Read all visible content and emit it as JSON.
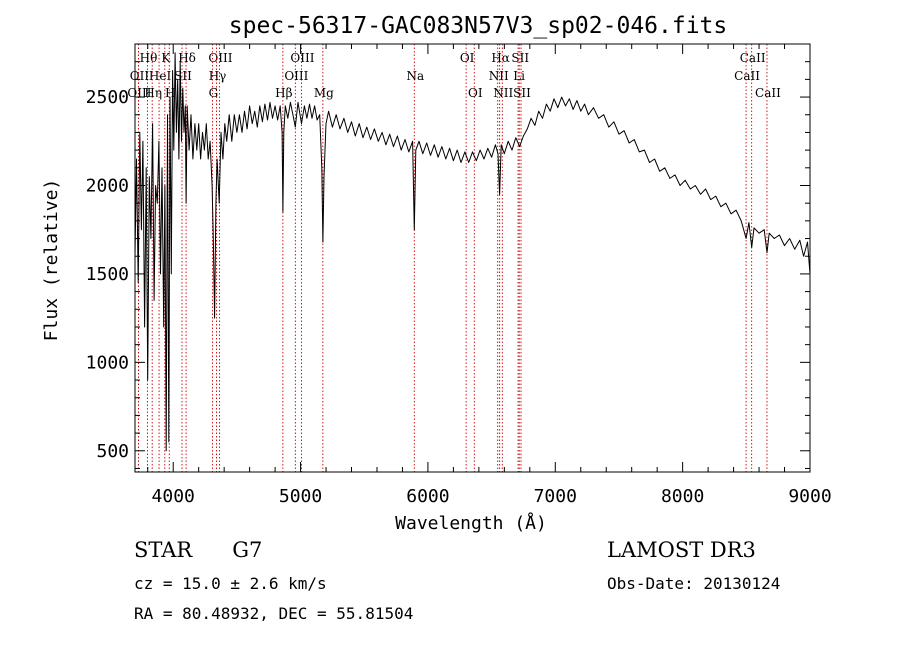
{
  "chart_data": {
    "type": "line",
    "title": "spec-56317-GAC083N57V3_sp02-046.fits",
    "xlabel": "Wavelength (Å)",
    "ylabel": "Flux (relative)",
    "xlim": [
      3700,
      9000
    ],
    "ylim": [
      380,
      2800
    ],
    "xticks": [
      4000,
      5000,
      6000,
      7000,
      8000,
      9000
    ],
    "yticks": [
      500,
      1000,
      1500,
      2000,
      2500
    ],
    "line_color": "#000000",
    "marker_color": "#cc0000",
    "series": [
      {
        "name": "flux",
        "points": [
          [
            3700,
            1600
          ],
          [
            3712,
            2150
          ],
          [
            3725,
            1450
          ],
          [
            3738,
            2300
          ],
          [
            3750,
            1750
          ],
          [
            3762,
            2250
          ],
          [
            3775,
            1200
          ],
          [
            3788,
            2100
          ],
          [
            3800,
            900
          ],
          [
            3812,
            2050
          ],
          [
            3825,
            1700
          ],
          [
            3838,
            2350
          ],
          [
            3850,
            1350
          ],
          [
            3862,
            2000
          ],
          [
            3875,
            1900
          ],
          [
            3888,
            2250
          ],
          [
            3900,
            1500
          ],
          [
            3912,
            2100
          ],
          [
            3925,
            1200
          ],
          [
            3935,
            2000
          ],
          [
            3945,
            500
          ],
          [
            3955,
            2400
          ],
          [
            3965,
            550
          ],
          [
            3975,
            2500
          ],
          [
            3985,
            1500
          ],
          [
            3995,
            2650
          ],
          [
            4005,
            2200
          ],
          [
            4015,
            2750
          ],
          [
            4025,
            2300
          ],
          [
            4035,
            2600
          ],
          [
            4045,
            2150
          ],
          [
            4055,
            2700
          ],
          [
            4065,
            2250
          ],
          [
            4075,
            2550
          ],
          [
            4085,
            2300
          ],
          [
            4095,
            2450
          ],
          [
            4101,
            1900
          ],
          [
            4110,
            2450
          ],
          [
            4125,
            2200
          ],
          [
            4140,
            2400
          ],
          [
            4155,
            2150
          ],
          [
            4170,
            2350
          ],
          [
            4185,
            2200
          ],
          [
            4200,
            2350
          ],
          [
            4215,
            2150
          ],
          [
            4230,
            2300
          ],
          [
            4245,
            2200
          ],
          [
            4260,
            2350
          ],
          [
            4275,
            2150
          ],
          [
            4290,
            2250
          ],
          [
            4305,
            2000
          ],
          [
            4315,
            1700
          ],
          [
            4325,
            1250
          ],
          [
            4335,
            1900
          ],
          [
            4345,
            2150
          ],
          [
            4361,
            1900
          ],
          [
            4375,
            2300
          ],
          [
            4390,
            2150
          ],
          [
            4405,
            2350
          ],
          [
            4420,
            2250
          ],
          [
            4440,
            2400
          ],
          [
            4460,
            2250
          ],
          [
            4480,
            2400
          ],
          [
            4500,
            2300
          ],
          [
            4520,
            2400
          ],
          [
            4540,
            2300
          ],
          [
            4560,
            2420
          ],
          [
            4580,
            2320
          ],
          [
            4600,
            2450
          ],
          [
            4620,
            2350
          ],
          [
            4640,
            2420
          ],
          [
            4660,
            2330
          ],
          [
            4680,
            2450
          ],
          [
            4700,
            2360
          ],
          [
            4720,
            2460
          ],
          [
            4740,
            2370
          ],
          [
            4760,
            2470
          ],
          [
            4780,
            2380
          ],
          [
            4800,
            2450
          ],
          [
            4820,
            2370
          ],
          [
            4840,
            2450
          ],
          [
            4855,
            2300
          ],
          [
            4861,
            1850
          ],
          [
            4868,
            2300
          ],
          [
            4880,
            2450
          ],
          [
            4900,
            2380
          ],
          [
            4920,
            2470
          ],
          [
            4940,
            2400
          ],
          [
            4959,
            2330
          ],
          [
            4980,
            2470
          ],
          [
            5007,
            2350
          ],
          [
            5030,
            2450
          ],
          [
            5050,
            2380
          ],
          [
            5070,
            2460
          ],
          [
            5090,
            2380
          ],
          [
            5110,
            2450
          ],
          [
            5130,
            2370
          ],
          [
            5150,
            2400
          ],
          [
            5167,
            2100
          ],
          [
            5175,
            1680
          ],
          [
            5184,
            2050
          ],
          [
            5200,
            2350
          ],
          [
            5220,
            2420
          ],
          [
            5250,
            2330
          ],
          [
            5280,
            2400
          ],
          [
            5310,
            2320
          ],
          [
            5340,
            2380
          ],
          [
            5370,
            2300
          ],
          [
            5400,
            2360
          ],
          [
            5430,
            2280
          ],
          [
            5460,
            2350
          ],
          [
            5490,
            2270
          ],
          [
            5520,
            2330
          ],
          [
            5550,
            2260
          ],
          [
            5580,
            2320
          ],
          [
            5610,
            2250
          ],
          [
            5640,
            2300
          ],
          [
            5670,
            2230
          ],
          [
            5700,
            2290
          ],
          [
            5730,
            2220
          ],
          [
            5760,
            2280
          ],
          [
            5790,
            2200
          ],
          [
            5820,
            2260
          ],
          [
            5850,
            2190
          ],
          [
            5880,
            2250
          ],
          [
            5893,
            1750
          ],
          [
            5905,
            2200
          ],
          [
            5930,
            2250
          ],
          [
            5960,
            2180
          ],
          [
            5990,
            2240
          ],
          [
            6020,
            2170
          ],
          [
            6050,
            2230
          ],
          [
            6080,
            2160
          ],
          [
            6110,
            2220
          ],
          [
            6140,
            2150
          ],
          [
            6170,
            2210
          ],
          [
            6200,
            2140
          ],
          [
            6230,
            2200
          ],
          [
            6260,
            2130
          ],
          [
            6290,
            2190
          ],
          [
            6320,
            2130
          ],
          [
            6350,
            2190
          ],
          [
            6380,
            2140
          ],
          [
            6410,
            2200
          ],
          [
            6440,
            2150
          ],
          [
            6470,
            2210
          ],
          [
            6500,
            2160
          ],
          [
            6530,
            2230
          ],
          [
            6550,
            2180
          ],
          [
            6563,
            1950
          ],
          [
            6575,
            2230
          ],
          [
            6600,
            2180
          ],
          [
            6630,
            2250
          ],
          [
            6660,
            2200
          ],
          [
            6690,
            2270
          ],
          [
            6720,
            2220
          ],
          [
            6750,
            2280
          ],
          [
            6780,
            2320
          ],
          [
            6810,
            2380
          ],
          [
            6840,
            2340
          ],
          [
            6870,
            2420
          ],
          [
            6900,
            2380
          ],
          [
            6930,
            2460
          ],
          [
            6960,
            2420
          ],
          [
            6990,
            2490
          ],
          [
            7020,
            2440
          ],
          [
            7050,
            2500
          ],
          [
            7080,
            2450
          ],
          [
            7110,
            2490
          ],
          [
            7140,
            2430
          ],
          [
            7170,
            2480
          ],
          [
            7200,
            2420
          ],
          [
            7230,
            2460
          ],
          [
            7260,
            2400
          ],
          [
            7300,
            2440
          ],
          [
            7340,
            2380
          ],
          [
            7380,
            2400
          ],
          [
            7420,
            2330
          ],
          [
            7460,
            2360
          ],
          [
            7500,
            2290
          ],
          [
            7540,
            2310
          ],
          [
            7580,
            2240
          ],
          [
            7620,
            2260
          ],
          [
            7660,
            2190
          ],
          [
            7700,
            2200
          ],
          [
            7740,
            2130
          ],
          [
            7780,
            2150
          ],
          [
            7820,
            2080
          ],
          [
            7860,
            2100
          ],
          [
            7900,
            2040
          ],
          [
            7940,
            2060
          ],
          [
            7980,
            2000
          ],
          [
            8020,
            2030
          ],
          [
            8060,
            1980
          ],
          [
            8100,
            2000
          ],
          [
            8140,
            1950
          ],
          [
            8180,
            1980
          ],
          [
            8220,
            1920
          ],
          [
            8260,
            1940
          ],
          [
            8300,
            1880
          ],
          [
            8340,
            1900
          ],
          [
            8380,
            1840
          ],
          [
            8420,
            1860
          ],
          [
            8460,
            1800
          ],
          [
            8498,
            1700
          ],
          [
            8520,
            1790
          ],
          [
            8542,
            1650
          ],
          [
            8560,
            1760
          ],
          [
            8600,
            1730
          ],
          [
            8640,
            1750
          ],
          [
            8662,
            1620
          ],
          [
            8680,
            1730
          ],
          [
            8720,
            1700
          ],
          [
            8760,
            1720
          ],
          [
            8800,
            1660
          ],
          [
            8840,
            1700
          ],
          [
            8880,
            1640
          ],
          [
            8920,
            1690
          ],
          [
            8950,
            1600
          ],
          [
            8980,
            1680
          ],
          [
            9000,
            1500
          ]
        ]
      }
    ],
    "line_markers": [
      {
        "label": "Hθ",
        "wavelength": 3798,
        "row": 0
      },
      {
        "label": "OII",
        "wavelength": 3727,
        "row": 1
      },
      {
        "label": "OIII",
        "wavelength": 3727,
        "row": 2
      },
      {
        "label": "K",
        "wavelength": 3934,
        "row": 0
      },
      {
        "label": "HeI",
        "wavelength": 3889,
        "row": 1
      },
      {
        "label": "Hη",
        "wavelength": 3835,
        "row": 2
      },
      {
        "label": "Hδ",
        "wavelength": 4101,
        "row": 0
      },
      {
        "label": "SII",
        "wavelength": 4069,
        "row": 1
      },
      {
        "label": "H",
        "wavelength": 3969,
        "row": 2
      },
      {
        "label": "OIII",
        "wavelength": 4363,
        "row": 0
      },
      {
        "label": "Hγ",
        "wavelength": 4340,
        "row": 1
      },
      {
        "label": "G",
        "wavelength": 4308,
        "row": 2
      },
      {
        "label": "OIII",
        "wavelength": 5007,
        "row": 0
      },
      {
        "label": "OIII",
        "wavelength": 4959,
        "row": 1
      },
      {
        "label": "Hβ",
        "wavelength": 4861,
        "row": 2
      },
      {
        "label": "Mg",
        "wavelength": 5175,
        "row": 2
      },
      {
        "label": "Na",
        "wavelength": 5893,
        "row": 1
      },
      {
        "label": "OI",
        "wavelength": 6300,
        "row": 0
      },
      {
        "label": "OI",
        "wavelength": 6364,
        "row": 2
      },
      {
        "label": "Hα",
        "wavelength": 6563,
        "row": 0
      },
      {
        "label": "SII",
        "wavelength": 6717,
        "row": 0
      },
      {
        "label": "NII",
        "wavelength": 6548,
        "row": 1
      },
      {
        "label": "Li",
        "wavelength": 6708,
        "row": 1
      },
      {
        "label": "NII",
        "wavelength": 6584,
        "row": 2
      },
      {
        "label": "SII",
        "wavelength": 6731,
        "row": 2
      },
      {
        "label": "CaII",
        "wavelength": 8542,
        "row": 0
      },
      {
        "label": "CaII",
        "wavelength": 8498,
        "row": 1
      },
      {
        "label": "CaII",
        "wavelength": 8662,
        "row": 2
      }
    ]
  },
  "info": {
    "object_class": "STAR",
    "subclass": "G7",
    "survey": "LAMOST DR3",
    "redshift": "cz = 15.0 ± 2.6 km/s",
    "obs_date": "Obs-Date: 20130124",
    "coords": "RA =  80.48932, DEC =  55.81504"
  }
}
